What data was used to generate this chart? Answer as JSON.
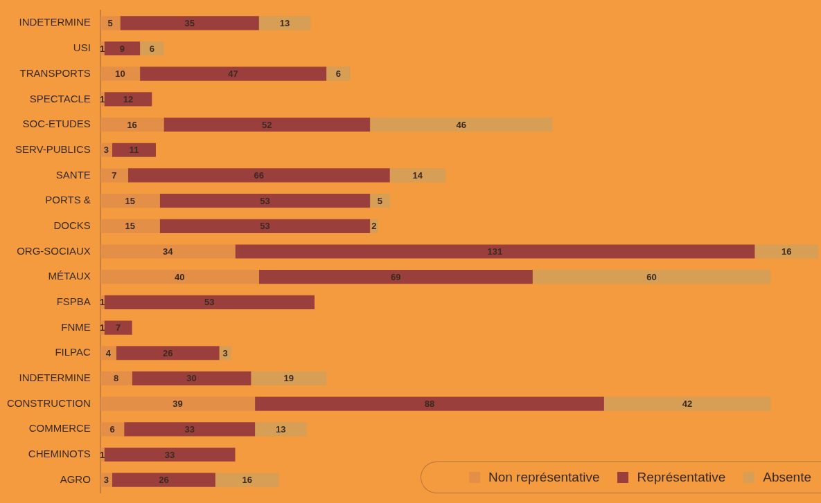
{
  "chart_data": {
    "type": "bar",
    "orientation": "horizontal",
    "stacked": true,
    "data_labels": true,
    "legend": "bottom right",
    "categories": [
      "INDETERMINE",
      "USI",
      "TRANSPORTS",
      "SPECTACLE",
      "SOC-ETUDES",
      "SERV-PUBLICS",
      "SANTE",
      "PORTS &",
      "DOCKS",
      "ORG-SOCIAUX",
      "MÉTAUX",
      "FSPBA",
      "FNME",
      "FILPAC",
      "INDETERMINE",
      "CONSTRUCTION",
      "COMMERCE",
      "CHEMINOTS",
      "AGRO"
    ],
    "series": [
      {
        "name": "Non représentative",
        "color": "#e38f47",
        "values": [
          5,
          1,
          10,
          1,
          16,
          3,
          7,
          15,
          15,
          34,
          40,
          1,
          1,
          4,
          8,
          39,
          6,
          1,
          3
        ]
      },
      {
        "name": "Représentative",
        "color": "#9b3f3c",
        "values": [
          35,
          9,
          47,
          12,
          52,
          11,
          66,
          53,
          53,
          131,
          69,
          53,
          7,
          26,
          30,
          88,
          33,
          33,
          26
        ]
      },
      {
        "name": "Absente",
        "color": "#d79e55",
        "values": [
          13,
          6,
          6,
          null,
          46,
          null,
          14,
          5,
          2,
          16,
          60,
          null,
          null,
          3,
          19,
          42,
          13,
          null,
          16
        ]
      }
    ]
  }
}
